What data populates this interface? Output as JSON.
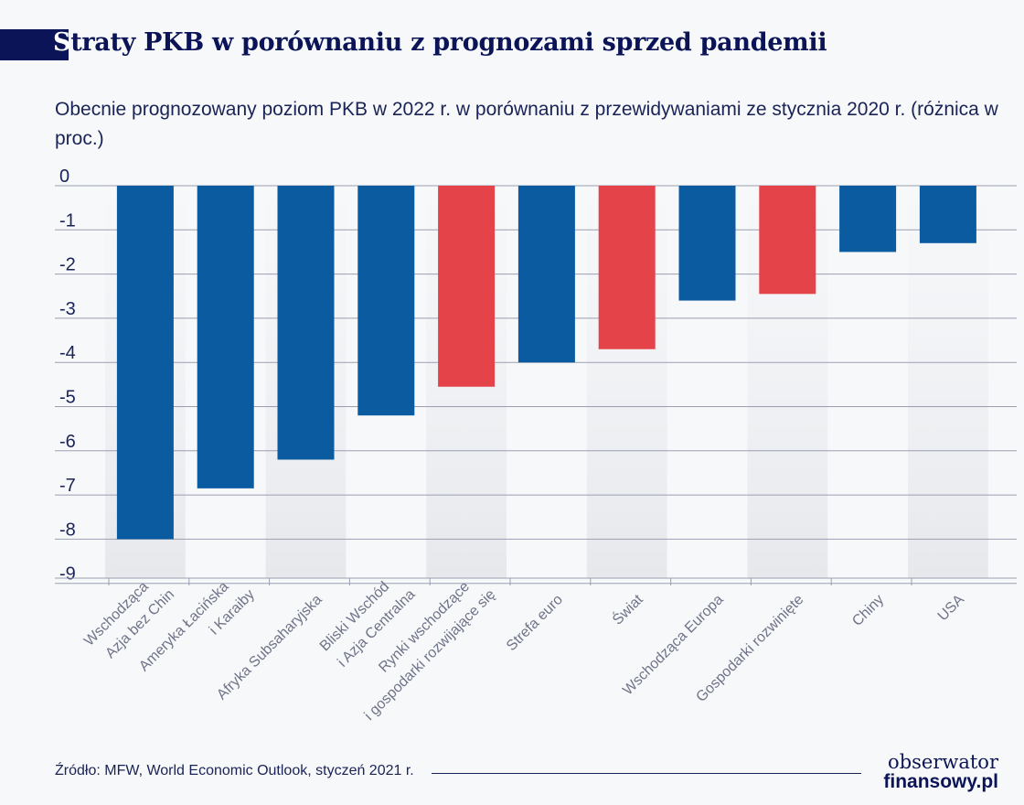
{
  "title": "Straty PKB w porównaniu z prognozami sprzed pandemii",
  "source": "Źródło: MFW, World Economic Outlook, styczeń 2021 r.",
  "logo": {
    "line1": "obserwator",
    "line2": "finansowy.pl"
  },
  "chart_data": {
    "type": "bar",
    "title": "Straty PKB w porównaniu z prognozami sprzed pandemii",
    "subtitle": "Obecnie prognozowany poziom PKB w 2022 r. w porównaniu z przewidywaniami ze stycznia 2020 r. (różnica w proc.)",
    "categories": [
      [
        "Wschodząca",
        "Azja bez Chin"
      ],
      [
        "Ameryka Łacińska",
        "i Karaiby"
      ],
      [
        "Afryka Subsaharyjska"
      ],
      [
        "Bliski Wschód",
        "i Azja Centralna"
      ],
      [
        "Rynki wschodzące",
        "i gospodarki rozwijające się"
      ],
      [
        "Strefa euro"
      ],
      [
        "Świat"
      ],
      [
        "Wschodząca Europa"
      ],
      [
        "Gospodarki rozwinięte"
      ],
      [
        "Chiny"
      ],
      [
        "USA"
      ]
    ],
    "values": [
      -8.0,
      -6.85,
      -6.2,
      -5.2,
      -4.55,
      -4.0,
      -3.7,
      -2.6,
      -2.45,
      -1.5,
      -1.3
    ],
    "highlight": [
      false,
      false,
      false,
      false,
      true,
      false,
      true,
      false,
      true,
      false,
      false
    ],
    "colors": {
      "default": "#0b5ba1",
      "highlight": "#e5434a",
      "title_block": "#0a1456"
    },
    "yticks": [
      "0",
      "-1",
      "-2",
      "-3",
      "-4",
      "-5",
      "-6",
      "-7",
      "-8",
      "-9"
    ],
    "ylim": [
      -9,
      0
    ],
    "grid": true,
    "xlabel": "",
    "ylabel": ""
  }
}
